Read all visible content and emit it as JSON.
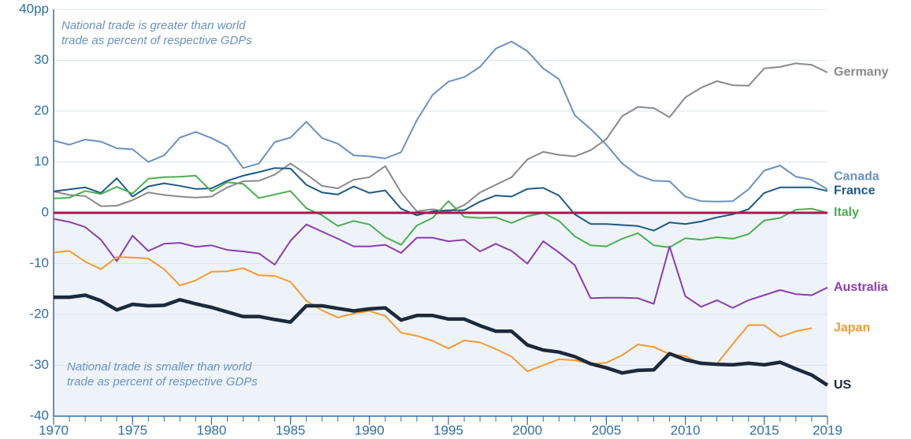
{
  "chart_data": {
    "type": "line",
    "annotations": [
      [
        "National trade is greater than world",
        "trade as percent of respective GDPs"
      ],
      [
        "National trade is smaller than world",
        "trade as percent of respective GDPs"
      ]
    ],
    "x": [
      1970,
      1971,
      1972,
      1973,
      1974,
      1975,
      1976,
      1977,
      1978,
      1979,
      1980,
      1981,
      1982,
      1983,
      1984,
      1985,
      1986,
      1987,
      1988,
      1989,
      1990,
      1991,
      1992,
      1993,
      1994,
      1995,
      1996,
      1997,
      1998,
      1999,
      2000,
      2001,
      2002,
      2003,
      2004,
      2005,
      2006,
      2007,
      2008,
      2009,
      2010,
      2011,
      2012,
      2013,
      2014,
      2015,
      2016,
      2017,
      2018,
      2019
    ],
    "xlim": [
      1970,
      2019
    ],
    "xticks": [
      1970,
      1975,
      1980,
      1985,
      1990,
      1995,
      2000,
      2005,
      2010,
      2015,
      2019
    ],
    "ylim": [
      -40,
      40
    ],
    "yticks": [
      -40,
      -30,
      -20,
      -10,
      0,
      10,
      20,
      30,
      {
        "value": 40,
        "label": "40pp"
      }
    ],
    "grid": true,
    "reference_line": 0,
    "series": [
      {
        "name": "Germany",
        "color": "#8a8a8c",
        "values": [
          4.2,
          3.5,
          3.3,
          1.3,
          1.4,
          2.5,
          4,
          3.5,
          3.2,
          3,
          3.2,
          5,
          6.2,
          6.3,
          7.5,
          9.7,
          7.6,
          5.3,
          4.8,
          6.5,
          7,
          9.2,
          4,
          0.3,
          0.7,
          0.2,
          1.5,
          4,
          5.5,
          7,
          10.5,
          12,
          11.4,
          11.1,
          12.3,
          14.5,
          19,
          20.8,
          20.6,
          18.8,
          22.7,
          24.6,
          25.9,
          25.1,
          25,
          28.4,
          28.7,
          29.4,
          29.1,
          27.6
        ]
      },
      {
        "name": "Canada",
        "color": "#6a92c2",
        "values": [
          14.2,
          13.4,
          14.4,
          14,
          12.7,
          12.5,
          10,
          11.3,
          14.8,
          15.9,
          14.7,
          13.1,
          8.8,
          9.7,
          13.9,
          14.8,
          17.9,
          14.7,
          13.6,
          11.3,
          11.1,
          10.7,
          11.9,
          18.2,
          23.2,
          25.8,
          26.7,
          28.7,
          32.3,
          33.7,
          31.8,
          28.4,
          26.3,
          19.2,
          16.5,
          13.4,
          9.7,
          7.4,
          6.3,
          6.2,
          3.2,
          2.3,
          2.2,
          2.3,
          4.6,
          8.3,
          9.3,
          7.1,
          6.5,
          4.6
        ]
      },
      {
        "name": "France",
        "color": "#1d5a86",
        "values": [
          4.2,
          4.6,
          5,
          3.9,
          6.8,
          3.2,
          5.2,
          5.8,
          5.3,
          4.7,
          4.8,
          6.3,
          7.3,
          8,
          8.8,
          8.7,
          5.5,
          4,
          3.6,
          5.2,
          3.9,
          4.4,
          0.8,
          -0.5,
          0.3,
          0.5,
          0.5,
          2.2,
          3.4,
          3.2,
          4.7,
          4.9,
          3.4,
          -0.3,
          -2.2,
          -2.2,
          -2.4,
          -2.6,
          -3.5,
          -1.9,
          -2.2,
          -1.7,
          -0.9,
          -0.3,
          0.7,
          3.9,
          5,
          5,
          5,
          4.3
        ]
      },
      {
        "name": "Italy",
        "color": "#4cae52",
        "values": [
          2.8,
          3,
          4.3,
          3.7,
          5.1,
          3.8,
          6.7,
          7,
          7.1,
          7.3,
          4.2,
          6,
          5.7,
          2.9,
          3.6,
          4.3,
          0.9,
          -0.5,
          -2.6,
          -1.6,
          -2.3,
          -4.8,
          -6.3,
          -2.5,
          -1,
          2.3,
          -0.8,
          -1,
          -0.9,
          -2,
          -0.7,
          0,
          -1.6,
          -4.6,
          -6.4,
          -6.6,
          -5.1,
          -4,
          -6.4,
          -6.8,
          -5,
          -5.3,
          -4.8,
          -5.1,
          -4.2,
          -1.5,
          -1,
          0.6,
          0.8,
          0
        ]
      },
      {
        "name": "Australia",
        "color": "#8b3dae",
        "values": [
          -1.2,
          -1.8,
          -2.8,
          -5.3,
          -9.5,
          -4.5,
          -7.5,
          -6.1,
          -5.9,
          -6.7,
          -6.4,
          -7.3,
          -7.6,
          -8,
          -10.2,
          -5.5,
          -2.3,
          -3.7,
          -5.1,
          -6.6,
          -6.6,
          -6.3,
          -7.9,
          -4.9,
          -4.9,
          -5.6,
          -5.3,
          -7.6,
          -6.1,
          -7.5,
          -10,
          -5.6,
          -7.8,
          -10.3,
          -16.8,
          -16.7,
          -16.7,
          -16.8,
          -17.9,
          -6.6,
          -16.4,
          -18.5,
          -17.2,
          -18.7,
          -17.2,
          -16.2,
          -15.2,
          -16,
          -16.2,
          -14.7
        ]
      },
      {
        "name": "Japan",
        "color": "#f39a30",
        "values": [
          -7.8,
          -7.5,
          -9.6,
          -11.1,
          -8.7,
          -8.8,
          -9,
          -11.1,
          -14.3,
          -13.3,
          -11.6,
          -11.5,
          -10.9,
          -12.3,
          -12.4,
          -13.6,
          -17.3,
          -19.2,
          -20.6,
          -19.8,
          -19.3,
          -20.3,
          -23.6,
          -24.2,
          -25.2,
          -26.7,
          -25.1,
          -25.5,
          -26.8,
          -28.3,
          -31.2,
          -30,
          -28.8,
          -29,
          -29.7,
          -29.5,
          -28,
          -25.9,
          -26.4,
          -27.8,
          -28.2,
          -29.7,
          -29.7,
          -25.8,
          -22.1,
          -22.1,
          -24.4,
          -23.3,
          -22.7,
          null
        ]
      },
      {
        "name": "US",
        "color": "#1b2a3b",
        "values": [
          -16.6,
          -16.6,
          -16.2,
          -17.3,
          -19.1,
          -18,
          -18.3,
          -18.2,
          -17.1,
          -17.9,
          -18.6,
          -19.5,
          -20.4,
          -20.4,
          -21,
          -21.5,
          -18.3,
          -18.3,
          -18.8,
          -19.3,
          -18.9,
          -18.7,
          -21.1,
          -20.2,
          -20.2,
          -20.9,
          -20.9,
          -22.2,
          -23.3,
          -23.3,
          -26,
          -27,
          -27.4,
          -28.3,
          -29.7,
          -30.5,
          -31.5,
          -31,
          -30.9,
          -27.7,
          -28.9,
          -29.6,
          -29.8,
          -29.9,
          -29.6,
          -29.9,
          -29.4,
          -30.7,
          -31.9,
          -33.9
        ]
      }
    ]
  }
}
